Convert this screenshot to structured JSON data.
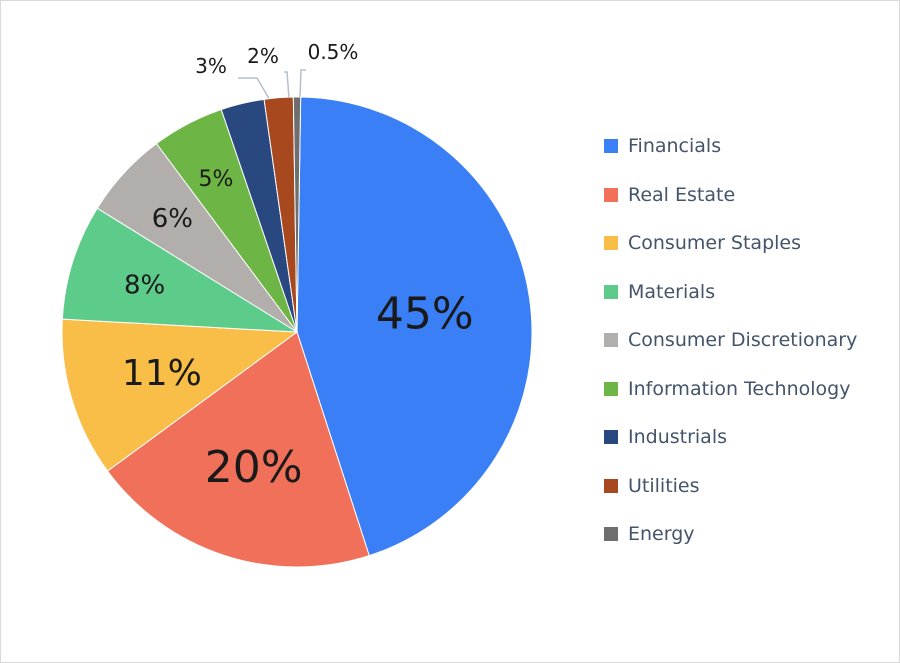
{
  "chart_data": {
    "type": "pie",
    "start_angle": "12 o'clock, clockwise",
    "legend_position": "right",
    "slices": [
      {
        "name": "Financials",
        "value": 45,
        "label": "45%",
        "color": "#3a7ff6"
      },
      {
        "name": "Real Estate",
        "value": 20,
        "label": "20%",
        "color": "#f0705a"
      },
      {
        "name": "Consumer Staples",
        "value": 11,
        "label": "11%",
        "color": "#f9be48"
      },
      {
        "name": "Materials",
        "value": 8,
        "label": "8%",
        "color": "#5dcb8a"
      },
      {
        "name": "Consumer Discretionary",
        "value": 6,
        "label": "6%",
        "color": "#b1aeab"
      },
      {
        "name": "Information Technology",
        "value": 5,
        "label": "5%",
        "color": "#6db544"
      },
      {
        "name": "Industrials",
        "value": 3,
        "label": "3%",
        "color": "#2a4880"
      },
      {
        "name": "Utilities",
        "value": 2,
        "label": "2%",
        "color": "#a8481e"
      },
      {
        "name": "Energy",
        "value": 0.5,
        "label": "0.5%",
        "color": "#6e6e6e"
      }
    ]
  }
}
